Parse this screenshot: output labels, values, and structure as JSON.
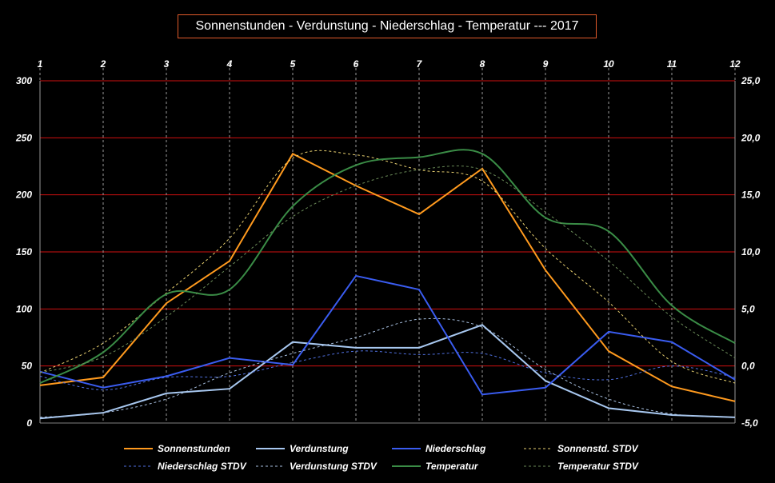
{
  "chart_data": {
    "type": "line",
    "title": "Sonnenstunden - Verdunstung - Niederschlag - Temperatur ---  2017",
    "x": [
      1,
      2,
      3,
      4,
      5,
      6,
      7,
      8,
      9,
      10,
      11,
      12
    ],
    "x_tick_labels": [
      "1",
      "2",
      "3",
      "4",
      "5",
      "6",
      "7",
      "8",
      "9",
      "10",
      "11",
      "12"
    ],
    "y_left": {
      "lim": [
        0,
        300
      ],
      "ticks": [
        "0",
        "50",
        "100",
        "150",
        "200",
        "250",
        "300"
      ]
    },
    "y_right": {
      "lim": [
        -5,
        25
      ],
      "ticks": [
        "-5,0",
        "0,0",
        "5,0",
        "10,0",
        "15,0",
        "20,0",
        "25,0"
      ]
    },
    "grid": {
      "horizontal": true,
      "horizontal_color": "#d01010",
      "vertical": true,
      "vertical_style": "dashed"
    },
    "legend_position": "bottom",
    "series": [
      {
        "name": "Sonnenstunden",
        "axis": "left",
        "color": "#ff9a1e",
        "style": "solid",
        "values": [
          33,
          40,
          105,
          142,
          236,
          208,
          183,
          223,
          134,
          63,
          32,
          19
        ]
      },
      {
        "name": "Verdunstung",
        "axis": "left",
        "color": "#a8c8f0",
        "style": "solid",
        "values": [
          4,
          9,
          26,
          30,
          71,
          66,
          66,
          86,
          37,
          13,
          7,
          5
        ]
      },
      {
        "name": "Niederschlag",
        "axis": "left",
        "color": "#3a5cf0",
        "style": "solid",
        "values": [
          45,
          31,
          41,
          57,
          51,
          129,
          117,
          25,
          31,
          80,
          71,
          38
        ]
      },
      {
        "name": "Sonnenstd. STDV",
        "axis": "left",
        "color": "#e8d070",
        "style": "dashed",
        "values": [
          44,
          70,
          114,
          162,
          232,
          235,
          222,
          212,
          153,
          106,
          54,
          35
        ]
      },
      {
        "name": "Niederschlag STDV",
        "axis": "left",
        "color": "#5070e0",
        "style": "dashed",
        "values": [
          41,
          29,
          40,
          41,
          53,
          63,
          60,
          61,
          44,
          38,
          50,
          40
        ]
      },
      {
        "name": "Verdunstung STDV",
        "axis": "left",
        "color": "#a8c0e0",
        "style": "dashed",
        "values": [
          5,
          9,
          21,
          44,
          61,
          75,
          91,
          84,
          47,
          21,
          8,
          5
        ]
      },
      {
        "name": "Temperatur",
        "axis": "right",
        "color": "#3a8c46",
        "style": "solid",
        "values": [
          -1.5,
          1.2,
          6.3,
          6.7,
          14.0,
          17.6,
          18.3,
          18.6,
          13.0,
          11.8,
          5.3,
          2.0
        ]
      },
      {
        "name": "Temperatur STDV",
        "axis": "right",
        "color": "#6a8a58",
        "style": "dashed",
        "values": [
          -0.6,
          0.8,
          4.3,
          8.7,
          13.1,
          15.8,
          17.2,
          17.2,
          13.5,
          9.2,
          4.3,
          0.7
        ]
      }
    ]
  }
}
